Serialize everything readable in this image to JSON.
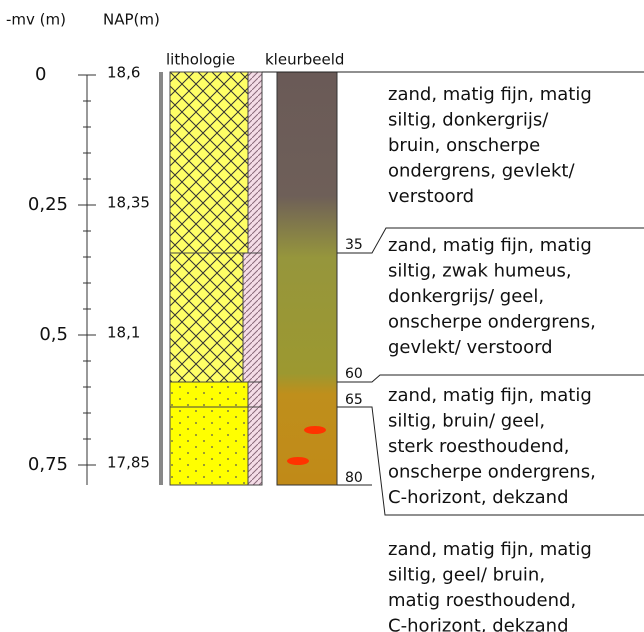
{
  "header": {
    "mv": "-mv (m)",
    "nap": "NAP(m)"
  },
  "columns": {
    "lithologie": "lithologie",
    "kleurbeeld": "kleurbeeld"
  },
  "depth_ticks": [
    {
      "mv": "0",
      "nap": "18,6"
    },
    {
      "mv": "0,25",
      "nap": "18,35"
    },
    {
      "mv": "0,5",
      "nap": "18,1"
    },
    {
      "mv": "0,75",
      "nap": "17,85"
    }
  ],
  "boundaries": [
    "35",
    "60",
    "65",
    "80"
  ],
  "descriptions": [
    [
      "zand, matig fijn, matig",
      "siltig, donkergrijs/",
      "bruin, onscherpe",
      "ondergrens, gevlekt/",
      "verstoord"
    ],
    [
      "zand, matig fijn, matig",
      "siltig, zwak humeus,",
      "donkergrijs/ geel,",
      "onscherpe ondergrens,",
      "gevlekt/ verstoord"
    ],
    [
      "zand, matig fijn, matig",
      "siltig, bruin/ geel,",
      "sterk roesthoudend,",
      "onscherpe ondergrens,",
      "C-horizont, dekzand"
    ],
    [
      "zand, matig fijn, matig",
      "siltig, geel/ bruin,",
      "matig roesthoudend,",
      "C-horizont, dekzand"
    ]
  ]
}
